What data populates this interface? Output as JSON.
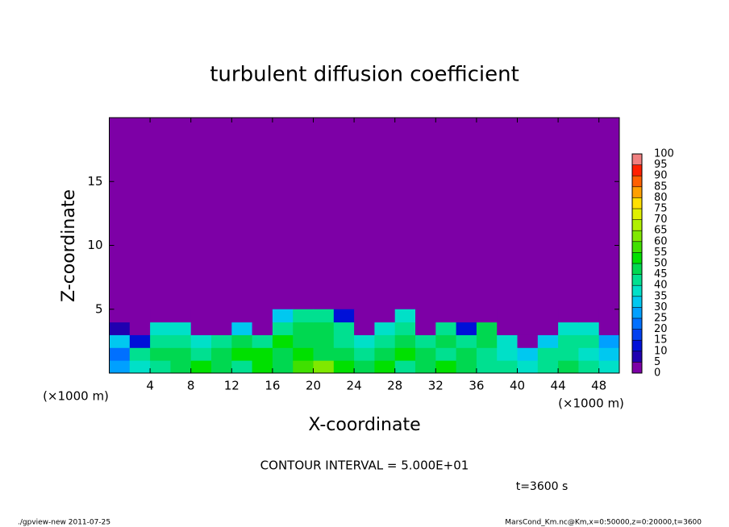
{
  "chart_data": {
    "type": "contour",
    "title": "turbulent diffusion coefficient",
    "xlabel": "X-coordinate",
    "ylabel": "Z-coordinate",
    "xunit": "(×1000 m)",
    "yunit": "(×1000 m)",
    "xlim": [
      0,
      50
    ],
    "ylim": [
      0,
      20
    ],
    "xticks": [
      4,
      8,
      12,
      16,
      20,
      24,
      28,
      32,
      36,
      40,
      44,
      48
    ],
    "yticks": [
      5,
      10,
      15
    ],
    "x": [
      1,
      3,
      5,
      7,
      9,
      11,
      13,
      15,
      17,
      19,
      21,
      23,
      25,
      27,
      29,
      31,
      33,
      35,
      37,
      39,
      41,
      43,
      45,
      47,
      49
    ],
    "y": [
      0.5,
      1.5,
      2.5,
      3.5,
      4.5
    ],
    "values": [
      [
        25,
        35,
        40,
        45,
        50,
        45,
        40,
        50,
        45,
        55,
        60,
        50,
        45,
        50,
        40,
        45,
        50,
        45,
        40,
        40,
        35,
        40,
        45,
        40,
        35
      ],
      [
        20,
        40,
        45,
        45,
        40,
        45,
        50,
        50,
        45,
        50,
        45,
        45,
        40,
        45,
        50,
        45,
        40,
        45,
        40,
        35,
        30,
        40,
        40,
        35,
        30
      ],
      [
        30,
        10,
        40,
        40,
        35,
        40,
        45,
        40,
        50,
        45,
        45,
        40,
        35,
        40,
        45,
        40,
        45,
        40,
        45,
        35,
        0,
        30,
        40,
        40,
        25
      ],
      [
        5,
        0,
        35,
        35,
        0,
        0,
        30,
        0,
        40,
        45,
        45,
        40,
        0,
        35,
        40,
        0,
        40,
        10,
        45,
        0,
        0,
        0,
        35,
        35,
        0
      ],
      [
        0,
        0,
        0,
        0,
        0,
        0,
        0,
        0,
        30,
        40,
        40,
        10,
        0,
        0,
        35,
        0,
        0,
        0,
        0,
        0,
        0,
        0,
        0,
        0,
        0
      ]
    ],
    "levels": [
      0,
      5,
      10,
      15,
      20,
      25,
      30,
      35,
      40,
      45,
      50,
      55,
      60,
      65,
      70,
      75,
      80,
      85,
      90,
      95,
      100
    ],
    "colors": [
      "#7d00a6",
      "#2000b0",
      "#0010d8",
      "#0040f0",
      "#0070ff",
      "#00a0ff",
      "#00c8f0",
      "#00e0c8",
      "#00e090",
      "#00d850",
      "#00e000",
      "#40e000",
      "#80e800",
      "#b0f000",
      "#e0f000",
      "#ffe000",
      "#ffa000",
      "#ff6000",
      "#ff2000",
      "#f08080"
    ],
    "contour_interval": "CONTOUR INTERVAL = 5.000E+01",
    "time_label": "t=3600 s",
    "footer_left": "./gpview-new  2011-07-25",
    "footer_right": "MarsCond_Km.nc@Km,x=0:50000,z=0:20000,t=3600"
  }
}
